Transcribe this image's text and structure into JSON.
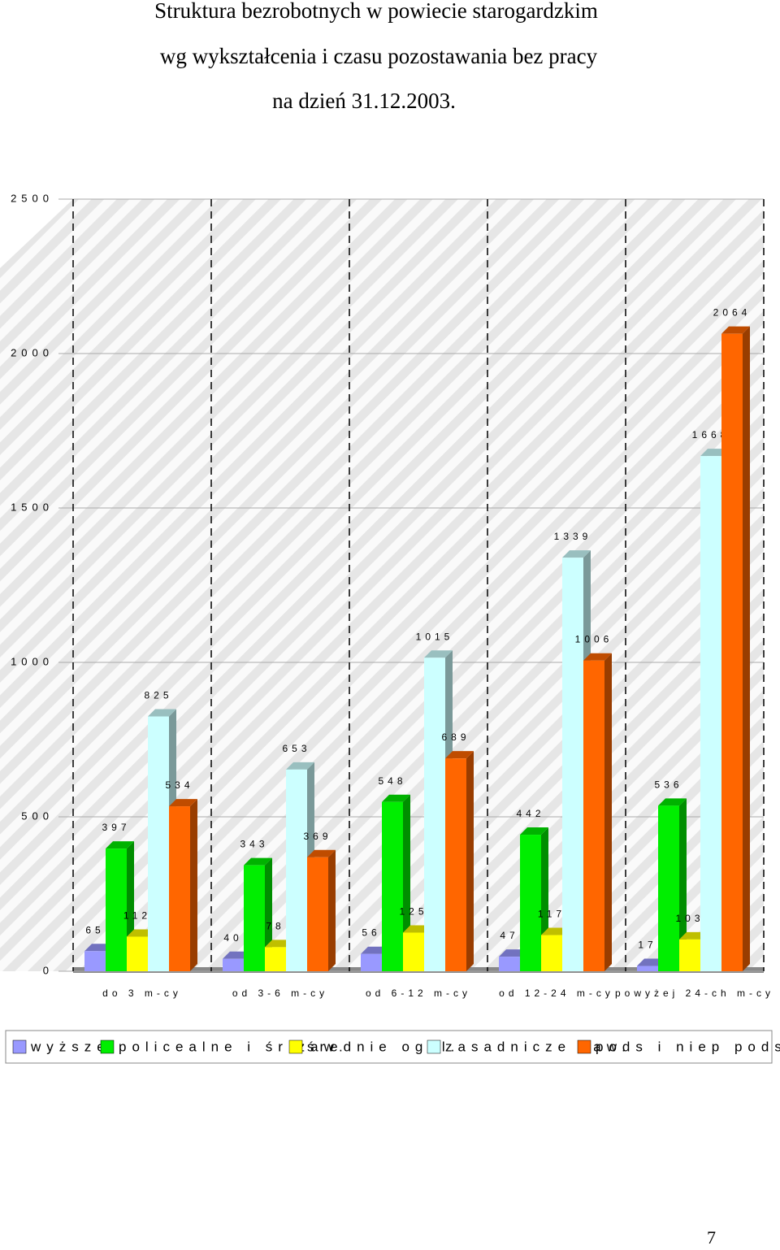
{
  "chart_data": {
    "type": "bar3d",
    "title": [
      "Struktura bezrobotnych w powiecie starogardzkim",
      "wg wykształcenia i czasu pozostawania bez pracy",
      "na dzień 31.12.2003."
    ],
    "categories": [
      "do 3 m-cy",
      "od 3-6 m-cy",
      "od 6-12 m-cy",
      "od 12-24 m-cy",
      "powyżej 24-ch m-cy"
    ],
    "series": [
      {
        "name": "wyższe",
        "color": "#9999ff",
        "values": [
          65,
          40,
          56,
          47,
          17
        ]
      },
      {
        "name": "policealne i śr zaw.",
        "color": "#00ee00",
        "values": [
          397,
          343,
          548,
          442,
          536
        ]
      },
      {
        "name": "średnie ogól.",
        "color": "#ffff00",
        "values": [
          112,
          78,
          125,
          117,
          103
        ]
      },
      {
        "name": "zasadnicze zaw.",
        "color": "#ccffff",
        "values": [
          825,
          653,
          1015,
          1339,
          1668
        ]
      },
      {
        "name": "pods i niep podst.",
        "color": "#ff6600",
        "values": [
          534,
          369,
          689,
          1006,
          2064
        ]
      }
    ],
    "ylim": [
      0,
      2500
    ],
    "yticks": [
      0,
      500,
      1000,
      1500,
      2000,
      2500
    ],
    "grid": true,
    "legend": "bottom"
  },
  "page_number": "7"
}
